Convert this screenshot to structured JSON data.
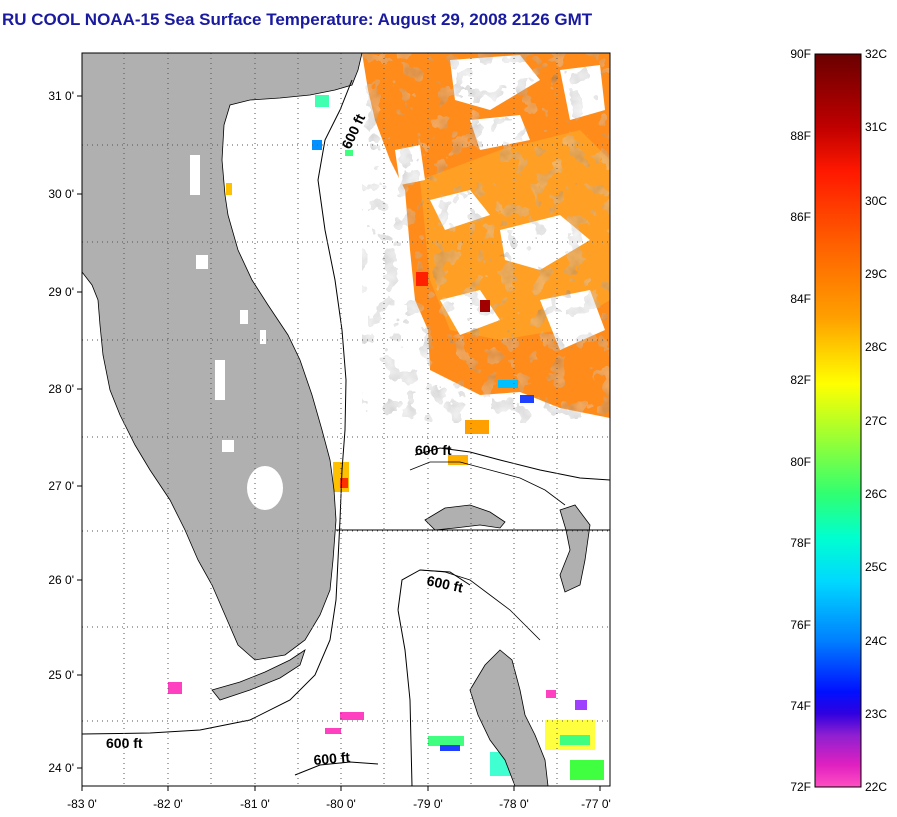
{
  "title": "RU COOL  NOAA-15  Sea Surface Temperature:  August 29, 2008 2126 GMT",
  "map": {
    "lon_labels": [
      "-83 0'",
      "-82 0'",
      "-81 0'",
      "-80 0'",
      "-79 0'",
      "-78 0'",
      "-77 0'"
    ],
    "lat_labels": [
      "31 0'",
      "30 0'",
      "29 0'",
      "28 0'",
      "27 0'",
      "26 0'",
      "25 0'",
      "24 0'"
    ],
    "contour_labels": [
      "600 ft",
      "600 ft",
      "600 ft",
      "600 ft",
      "600 ft"
    ],
    "colors": {
      "land": "#b0b0b0",
      "ocean": "#ffffff",
      "coast": "#000000"
    }
  },
  "colorbar": {
    "fahrenheit_labels": [
      "90F",
      "88F",
      "86F",
      "84F",
      "82F",
      "80F",
      "78F",
      "76F",
      "74F",
      "72F"
    ],
    "celsius_labels": [
      "32C",
      "31C",
      "30C",
      "29C",
      "28C",
      "27C",
      "26C",
      "25C",
      "24C",
      "23C",
      "22C"
    ]
  }
}
